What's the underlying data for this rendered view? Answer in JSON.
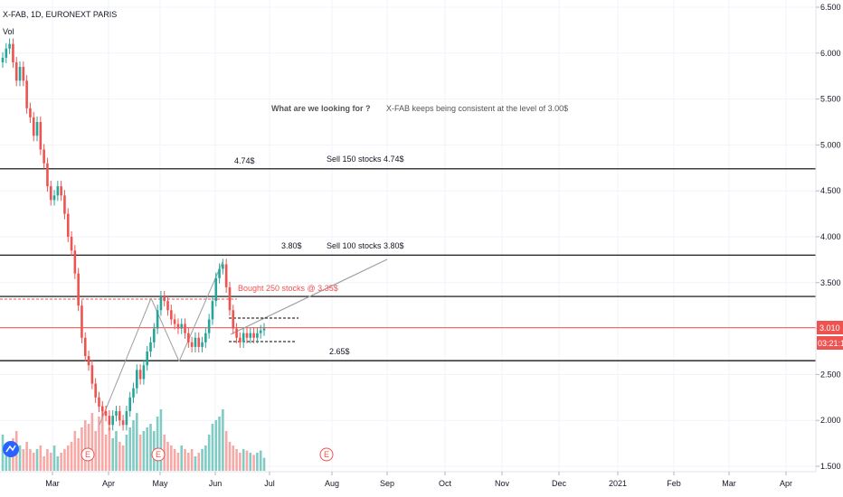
{
  "header": {
    "title": "X-FAB, 1D, EURONEXT PARIS",
    "volume_label": "Vol"
  },
  "colors": {
    "up": "#26a69a",
    "down": "#ef5350",
    "vol_up": "#80cbc4",
    "vol_down": "#f7a9a7",
    "level_line": "#000000",
    "price_line": "#ef5350",
    "buy_text": "#ef5350",
    "trend_line": "#9e9e9e",
    "grid": "#f0f3fa",
    "axis_text": "#131722",
    "logo": "#2962ff"
  },
  "price_tag": {
    "value": "3.010",
    "countdown": "03:21:12"
  },
  "annotations": {
    "question": "What are we looking for ?",
    "consistent": "X-FAB keeps being consistent at the level of 3.00$",
    "sell_150": "Sell 150 stocks 4.74$",
    "sell_100": "Sell 100 stocks 3.80$",
    "bought": "Bought 250 stocks @ 3.35$",
    "level_474": "4.74$",
    "level_380": "3.80$",
    "level_265": "2.65$"
  },
  "event_markers": [
    "E",
    "E",
    "E"
  ],
  "chart_data": {
    "type": "candlestick",
    "title": "X-FAB, 1D, EURONEXT PARIS",
    "ylim": [
      1.5,
      6.5
    ],
    "y_ticks": [
      "6.500",
      "6.000",
      "5.500",
      "5.000",
      "4.500",
      "4.000",
      "3.500",
      "3.000",
      "2.500",
      "2.000",
      "1.500"
    ],
    "x_ticks": [
      "Mar",
      "Apr",
      "May",
      "Jun",
      "Jul",
      "Aug",
      "Sep",
      "Oct",
      "Nov",
      "Dec",
      "2021",
      "Feb",
      "Mar",
      "Apr"
    ],
    "horizontal_levels": [
      4.74,
      3.8,
      3.35,
      3.01,
      2.65
    ],
    "closes": [
      5.95,
      6.05,
      6.1,
      5.9,
      5.7,
      5.85,
      5.7,
      5.4,
      5.3,
      5.1,
      5.25,
      4.95,
      4.8,
      4.55,
      4.4,
      4.45,
      4.55,
      4.45,
      4.25,
      4.0,
      3.85,
      3.6,
      3.25,
      2.9,
      2.7,
      2.6,
      2.4,
      2.25,
      2.15,
      2.1,
      2.05,
      1.95,
      2.05,
      2.1,
      2.0,
      1.95,
      2.1,
      2.25,
      2.35,
      2.55,
      2.45,
      2.6,
      2.75,
      2.85,
      3.0,
      3.2,
      3.35,
      3.3,
      3.2,
      3.1,
      3.05,
      3.0,
      3.05,
      2.95,
      2.85,
      2.8,
      2.9,
      2.8,
      2.85,
      2.95,
      3.1,
      3.3,
      3.55,
      3.65,
      3.7,
      3.45,
      3.2,
      3.0,
      2.9,
      2.85,
      2.95,
      2.9,
      2.95,
      2.9,
      2.95,
      2.98,
      3.0
    ],
    "volume_heights": [
      0.5,
      0.35,
      0.3,
      0.45,
      0.55,
      0.35,
      0.3,
      0.4,
      0.3,
      0.25,
      0.3,
      0.35,
      0.2,
      0.3,
      0.25,
      0.35,
      0.2,
      0.25,
      0.3,
      0.35,
      0.4,
      0.55,
      0.45,
      0.6,
      0.7,
      0.65,
      0.8,
      0.55,
      0.75,
      0.9,
      0.5,
      0.6,
      0.45,
      0.55,
      0.4,
      0.35,
      0.5,
      0.6,
      0.7,
      0.8,
      0.5,
      0.55,
      0.6,
      0.65,
      0.55,
      0.75,
      0.85,
      0.5,
      0.4,
      0.35,
      0.3,
      0.25,
      0.35,
      0.3,
      0.25,
      0.3,
      0.2,
      0.25,
      0.3,
      0.35,
      0.5,
      0.65,
      0.7,
      0.75,
      0.85,
      0.55,
      0.4,
      0.35,
      0.3,
      0.25,
      0.3,
      0.28,
      0.25,
      0.22,
      0.25,
      0.28,
      0.18
    ]
  }
}
